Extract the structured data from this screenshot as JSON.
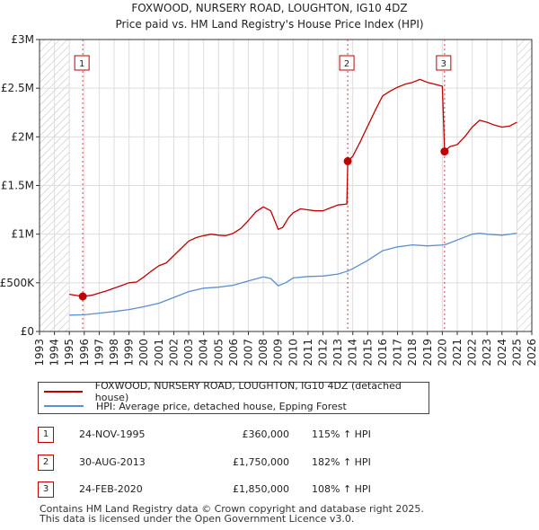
{
  "chart_data": {
    "type": "line",
    "title": "FOXWOOD, NURSERY ROAD, LOUGHTON, IG10 4DZ",
    "subtitle": "Price paid vs. HM Land Registry's House Price Index (HPI)",
    "x_range": [
      1993,
      2026
    ],
    "x_ticks": [
      "1993",
      "1994",
      "1995",
      "1996",
      "1997",
      "1998",
      "1999",
      "2000",
      "2001",
      "2002",
      "2003",
      "2004",
      "2005",
      "2006",
      "2007",
      "2008",
      "2009",
      "2010",
      "2011",
      "2012",
      "2013",
      "2014",
      "2015",
      "2016",
      "2017",
      "2018",
      "2019",
      "2020",
      "2021",
      "2022",
      "2023",
      "2024",
      "2025",
      "2026"
    ],
    "ylim": [
      0,
      3000000
    ],
    "y_ticks": [
      {
        "value": 0,
        "label": "£0"
      },
      {
        "value": 500000,
        "label": "£500K"
      },
      {
        "value": 1000000,
        "label": "£1M"
      },
      {
        "value": 1500000,
        "label": "£1.5M"
      },
      {
        "value": 2000000,
        "label": "£2M"
      },
      {
        "value": 2500000,
        "label": "£2.5M"
      },
      {
        "value": 3000000,
        "label": "£3M"
      }
    ],
    "hatched_ranges": [
      [
        1993,
        1995.0
      ],
      [
        2025.0,
        2026
      ]
    ],
    "series": [
      {
        "name": "FOXWOOD, NURSERY ROAD, LOUGHTON, IG10 4DZ (detached house)",
        "color": "#c00000",
        "points": [
          [
            1995.0,
            382000
          ],
          [
            1995.9,
            360000
          ],
          [
            1996.5,
            372000
          ],
          [
            1997.0,
            395000
          ],
          [
            1997.5,
            418000
          ],
          [
            1998.0,
            445000
          ],
          [
            1998.5,
            472000
          ],
          [
            1999.0,
            500000
          ],
          [
            1999.5,
            508000
          ],
          [
            2000.0,
            560000
          ],
          [
            2000.5,
            620000
          ],
          [
            2001.0,
            675000
          ],
          [
            2001.5,
            705000
          ],
          [
            2002.0,
            780000
          ],
          [
            2002.5,
            855000
          ],
          [
            2003.0,
            930000
          ],
          [
            2003.5,
            965000
          ],
          [
            2004.0,
            985000
          ],
          [
            2004.5,
            1000000
          ],
          [
            2005.0,
            990000
          ],
          [
            2005.5,
            985000
          ],
          [
            2006.0,
            1010000
          ],
          [
            2006.5,
            1060000
          ],
          [
            2007.0,
            1140000
          ],
          [
            2007.5,
            1230000
          ],
          [
            2008.0,
            1280000
          ],
          [
            2008.5,
            1240000
          ],
          [
            2009.0,
            1050000
          ],
          [
            2009.3,
            1070000
          ],
          [
            2009.7,
            1170000
          ],
          [
            2010.0,
            1220000
          ],
          [
            2010.5,
            1260000
          ],
          [
            2011.0,
            1250000
          ],
          [
            2011.5,
            1240000
          ],
          [
            2012.0,
            1240000
          ],
          [
            2012.5,
            1270000
          ],
          [
            2013.0,
            1300000
          ],
          [
            2013.6,
            1310000
          ],
          [
            2013.66,
            1750000
          ],
          [
            2014.0,
            1800000
          ],
          [
            2014.5,
            1950000
          ],
          [
            2015.0,
            2110000
          ],
          [
            2015.5,
            2270000
          ],
          [
            2016.0,
            2420000
          ],
          [
            2016.5,
            2470000
          ],
          [
            2017.0,
            2510000
          ],
          [
            2017.5,
            2540000
          ],
          [
            2018.0,
            2560000
          ],
          [
            2018.5,
            2590000
          ],
          [
            2019.0,
            2560000
          ],
          [
            2019.5,
            2540000
          ],
          [
            2020.0,
            2520000
          ],
          [
            2020.15,
            1850000
          ],
          [
            2020.5,
            1900000
          ],
          [
            2021.0,
            1920000
          ],
          [
            2021.5,
            2000000
          ],
          [
            2022.0,
            2100000
          ],
          [
            2022.5,
            2170000
          ],
          [
            2023.0,
            2150000
          ],
          [
            2023.5,
            2120000
          ],
          [
            2024.0,
            2100000
          ],
          [
            2024.5,
            2110000
          ],
          [
            2025.0,
            2150000
          ]
        ]
      },
      {
        "name": "HPI: Average price, detached house, Epping Forest",
        "color": "#5b8fcf",
        "points": [
          [
            1995.0,
            168000
          ],
          [
            1996.0,
            172000
          ],
          [
            1997.0,
            188000
          ],
          [
            1998.0,
            205000
          ],
          [
            1999.0,
            225000
          ],
          [
            2000.0,
            255000
          ],
          [
            2001.0,
            290000
          ],
          [
            2002.0,
            350000
          ],
          [
            2003.0,
            410000
          ],
          [
            2004.0,
            445000
          ],
          [
            2005.0,
            455000
          ],
          [
            2006.0,
            475000
          ],
          [
            2007.0,
            520000
          ],
          [
            2008.0,
            560000
          ],
          [
            2008.5,
            545000
          ],
          [
            2009.0,
            470000
          ],
          [
            2009.5,
            500000
          ],
          [
            2010.0,
            550000
          ],
          [
            2011.0,
            565000
          ],
          [
            2012.0,
            570000
          ],
          [
            2013.0,
            590000
          ],
          [
            2013.66,
            620000
          ],
          [
            2014.0,
            645000
          ],
          [
            2015.0,
            730000
          ],
          [
            2016.0,
            830000
          ],
          [
            2017.0,
            870000
          ],
          [
            2018.0,
            890000
          ],
          [
            2019.0,
            880000
          ],
          [
            2020.15,
            890000
          ],
          [
            2021.0,
            940000
          ],
          [
            2022.0,
            1000000
          ],
          [
            2022.5,
            1010000
          ],
          [
            2023.0,
            1000000
          ],
          [
            2024.0,
            990000
          ],
          [
            2025.0,
            1010000
          ]
        ]
      }
    ],
    "sales": [
      {
        "id": "1",
        "x": 1995.9,
        "y": 360000
      },
      {
        "id": "2",
        "x": 2013.66,
        "y": 1750000
      },
      {
        "id": "3",
        "x": 2020.15,
        "y": 1850000
      }
    ]
  },
  "legend": {
    "property_label": "FOXWOOD, NURSERY ROAD, LOUGHTON, IG10 4DZ (detached house)",
    "hpi_label": "HPI: Average price, detached house, Epping Forest",
    "property_color": "#c00000",
    "hpi_color": "#5b8fcf"
  },
  "sales_table": [
    {
      "id": "1",
      "date": "24-NOV-1995",
      "price": "£360,000",
      "hpi": "115% ↑ HPI"
    },
    {
      "id": "2",
      "date": "30-AUG-2013",
      "price": "£1,750,000",
      "hpi": "182% ↑ HPI"
    },
    {
      "id": "3",
      "date": "24-FEB-2020",
      "price": "£1,850,000",
      "hpi": "108% ↑ HPI"
    }
  ],
  "footer": {
    "line1": "Contains HM Land Registry data © Crown copyright and database right 2025.",
    "line2": "This data is licensed under the Open Government Licence v3.0."
  }
}
